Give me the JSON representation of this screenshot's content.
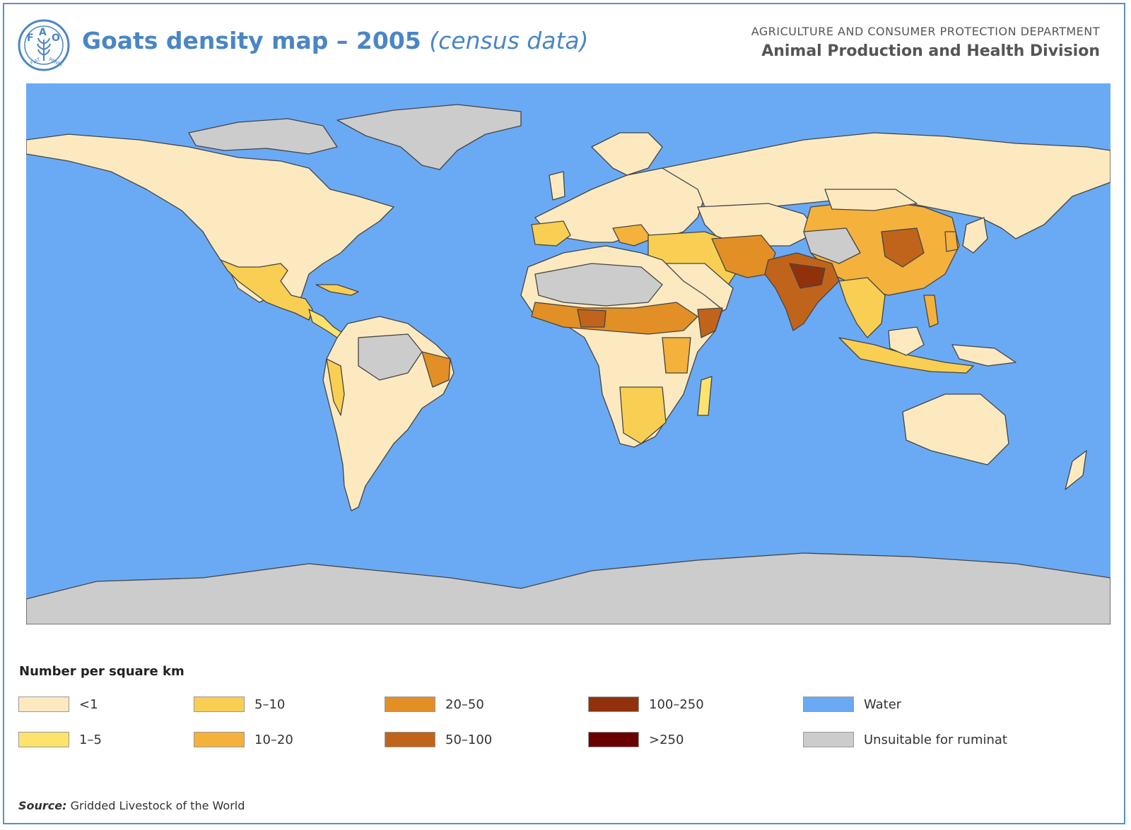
{
  "header": {
    "title": "Goats density map – 2005",
    "title_sub": "(census data)",
    "department": "AGRICULTURE AND CONSUMER PROTECTION DEPARTMENT",
    "division": "Animal Production and Health Division",
    "logo_text": "FAO FIAT PANIS"
  },
  "map": {
    "ocean_color": "#6aaaf5",
    "unsuitable_color": "#cccccc",
    "border_color": "#444444"
  },
  "legend": {
    "title": "Number per square km",
    "items": [
      {
        "label": "<1",
        "color": "#fde9c0"
      },
      {
        "label": "1–5",
        "color": "#fbe36e"
      },
      {
        "label": "5–10",
        "color": "#f8cf52"
      },
      {
        "label": "10–20",
        "color": "#f4b13c"
      },
      {
        "label": "20–50",
        "color": "#e28f26"
      },
      {
        "label": "50–100",
        "color": "#c0641b"
      },
      {
        "label": "100–250",
        "color": "#91310c"
      },
      {
        "label": ">250",
        "color": "#6a0000"
      },
      {
        "label": "Water",
        "color": "#6aaaf5"
      },
      {
        "label": "Unsuitable for ruminat",
        "color": "#cccccc"
      }
    ]
  },
  "source": {
    "label": "Source:",
    "text": "Gridded Livestock of the World"
  }
}
